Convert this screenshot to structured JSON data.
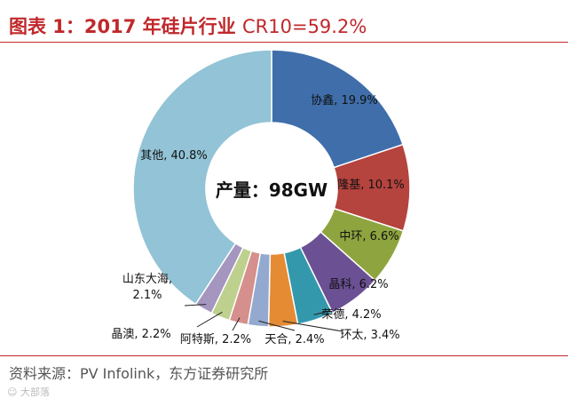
{
  "header": {
    "title_prefix": "图表 1：2017 年硅片行业",
    "title_suffix": "CR10=59.2%"
  },
  "chart_data": {
    "type": "pie",
    "title": "图表 1：2017 年硅片行业 CR10=59.2%",
    "center_label": "产量：98GW",
    "slices": [
      {
        "name": "协鑫",
        "value": 19.9,
        "label": "协鑫, 19.9%",
        "color": "#3f6eaa"
      },
      {
        "name": "隆基",
        "value": 10.1,
        "label": "隆基, 10.1%",
        "color": "#b5433e"
      },
      {
        "name": "中环",
        "value": 6.6,
        "label": "中环, 6.6%",
        "color": "#8ea53f"
      },
      {
        "name": "晶科",
        "value": 6.2,
        "label": "晶科, 6.2%",
        "color": "#6b5093"
      },
      {
        "name": "荣德",
        "value": 4.2,
        "label": "荣德, 4.2%",
        "color": "#3498ad"
      },
      {
        "name": "环太",
        "value": 3.4,
        "label": "环太, 3.4%",
        "color": "#e48b33"
      },
      {
        "name": "天合",
        "value": 2.4,
        "label": "天合, 2.4%",
        "color": "#93a9cf"
      },
      {
        "name": "阿特斯",
        "value": 2.2,
        "label": "阿特斯, 2.2%",
        "color": "#d58f8c"
      },
      {
        "name": "晶澳",
        "value": 2.2,
        "label": "晶澳, 2.2%",
        "color": "#bdd08d"
      },
      {
        "name": "山东大海",
        "value": 2.1,
        "label_line1": "山东大海,",
        "label_line2": "2.1%",
        "color": "#a596c0"
      },
      {
        "name": "其他",
        "value": 40.8,
        "label": "其他, 40.8%",
        "color": "#92c3d6"
      }
    ]
  },
  "footer": {
    "source": "资料来源：PV Infolink，东方证券研究所",
    "watermark": "大部落"
  }
}
